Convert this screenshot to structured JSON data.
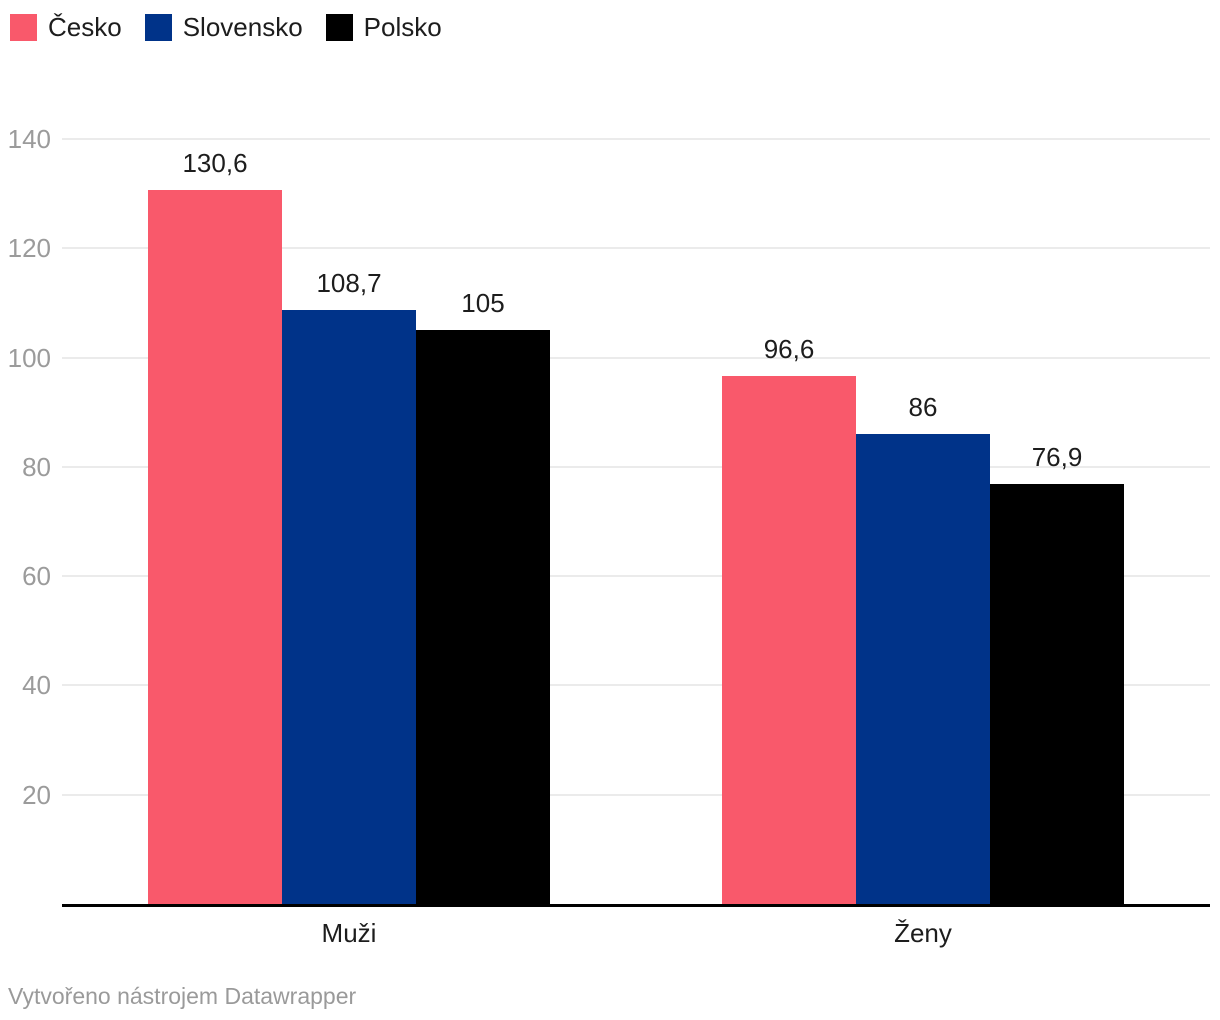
{
  "legend": {
    "items": [
      {
        "label": "Česko",
        "color": "#f9596b"
      },
      {
        "label": "Slovensko",
        "color": "#003389"
      },
      {
        "label": "Polsko",
        "color": "#000000"
      }
    ]
  },
  "chart_data": {
    "type": "bar",
    "title": "",
    "xlabel": "",
    "ylabel": "",
    "categories": [
      "Muži",
      "Ženy"
    ],
    "series": [
      {
        "name": "Česko",
        "color": "#f9596b",
        "values": [
          130.6,
          96.6
        ],
        "value_labels": [
          "130,6",
          "96,6"
        ]
      },
      {
        "name": "Slovensko",
        "color": "#003389",
        "values": [
          108.7,
          86
        ],
        "value_labels": [
          "108,7",
          "86"
        ]
      },
      {
        "name": "Polsko",
        "color": "#000000",
        "values": [
          105,
          76.9
        ],
        "value_labels": [
          "105",
          "76,9"
        ]
      }
    ],
    "ylim": [
      0,
      140
    ],
    "y_ticks": [
      20,
      40,
      60,
      80,
      100,
      120,
      140
    ],
    "grid": true,
    "legend_position": "top-left"
  },
  "footer": {
    "credit": "Vytvořeno nástrojem Datawrapper"
  },
  "colors": {
    "background": "#ffffff",
    "grid": "#ebebeb",
    "axis_line": "#000000",
    "tick_text": "#9b9b9b",
    "label_text": "#1d1d1d",
    "footer_text": "#9a9a9a"
  }
}
